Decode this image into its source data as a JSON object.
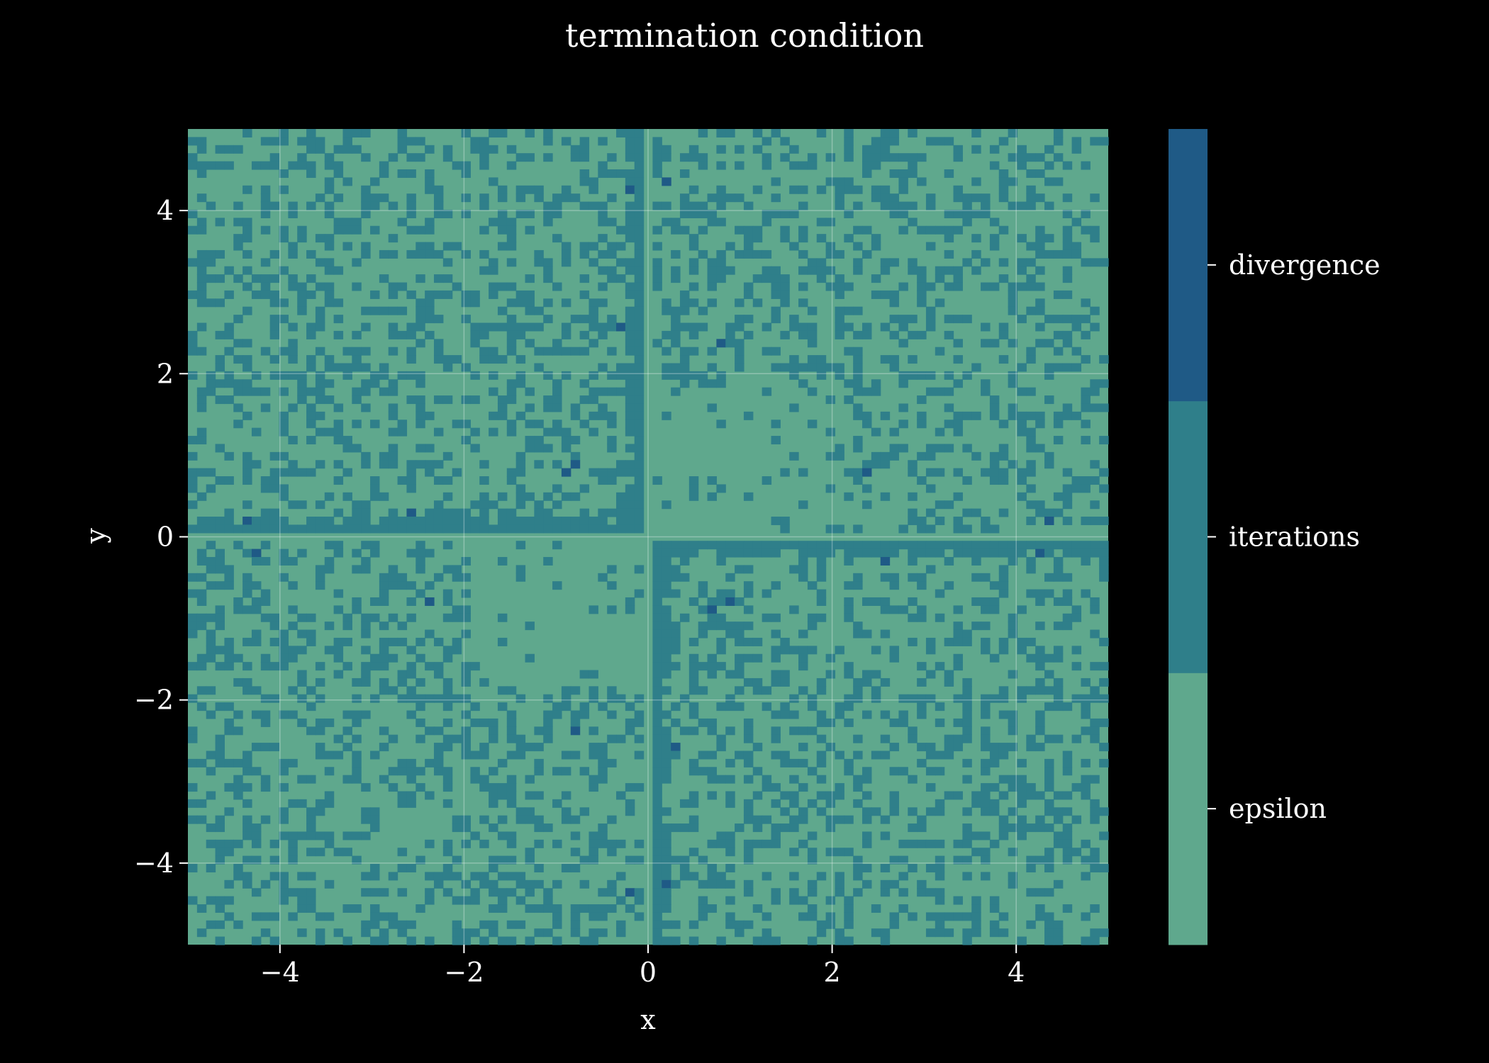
{
  "chart_data": {
    "type": "heatmap",
    "title": "termination condition",
    "xlabel": "x",
    "ylabel": "y",
    "xlim": [
      -5,
      5
    ],
    "ylim": [
      -5,
      5
    ],
    "grid": true,
    "grid_resolution": 101,
    "x_ticks": [
      -4,
      -2,
      0,
      2,
      4
    ],
    "y_ticks": [
      -4,
      -2,
      0,
      2,
      4
    ],
    "x_tick_labels": [
      "−4",
      "−2",
      "0",
      "2",
      "4"
    ],
    "y_tick_labels": [
      "−4",
      "−2",
      "0",
      "2",
      "4"
    ],
    "categories": [
      "epsilon",
      "iterations",
      "divergence"
    ],
    "category_colors": [
      "#5fa88d",
      "#2f7f8a",
      "#1f5a86"
    ],
    "background_color": "#000000",
    "description": "Most cells terminate by 'epsilon'; 'iterations' cells form a scattered speckle plus a cross pattern along the x and y axes (left/down half-lines in upper-left, right/down half-lines in lower-right); a few isolated 'divergence' cells.",
    "divergence_points": [
      [
        -0.2,
        4.3
      ],
      [
        0.15,
        4.4
      ],
      [
        -0.25,
        2.6
      ],
      [
        0.75,
        2.4
      ],
      [
        -0.9,
        0.8
      ],
      [
        -0.8,
        0.9
      ],
      [
        2.35,
        0.8
      ],
      [
        -2.6,
        0.25
      ],
      [
        -4.35,
        0.15
      ],
      [
        4.35,
        0.15
      ],
      [
        -4.3,
        -0.15
      ],
      [
        4.25,
        -0.15
      ],
      [
        2.55,
        -0.25
      ],
      [
        -2.35,
        -0.75
      ],
      [
        0.7,
        -0.85
      ],
      [
        0.85,
        -0.75
      ],
      [
        -0.8,
        -2.35
      ],
      [
        0.25,
        -2.55
      ],
      [
        -0.15,
        -4.35
      ],
      [
        0.15,
        -4.25
      ]
    ]
  }
}
